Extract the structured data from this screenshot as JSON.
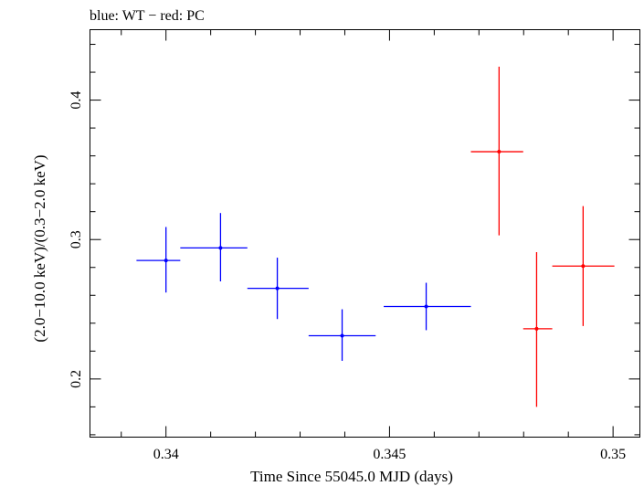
{
  "chart_data": {
    "type": "scatter",
    "title": "blue: WT − red: PC",
    "xlabel": "Time Since 55045.0 MJD (days)",
    "ylabel": "(2.0−10.0 keV)/(0.3−2.0 keV)",
    "xlim": [
      0.3383,
      0.3506
    ],
    "ylim": [
      0.1583,
      0.4505
    ],
    "x_ticks": [
      {
        "value": 0.34,
        "label": "0.34"
      },
      {
        "value": 0.345,
        "label": "0.345"
      },
      {
        "value": 0.35,
        "label": "0.35"
      }
    ],
    "y_ticks": [
      {
        "value": 0.2,
        "label": "0.2"
      },
      {
        "value": 0.3,
        "label": "0.3"
      },
      {
        "value": 0.4,
        "label": "0.4"
      }
    ],
    "grid": false,
    "series": [
      {
        "name": "WT",
        "color": "#0000ff",
        "points": [
          {
            "x": 0.34,
            "y": 0.285,
            "x_lo": 0.33934,
            "x_hi": 0.34032,
            "y_lo": 0.262,
            "y_hi": 0.309
          },
          {
            "x": 0.34122,
            "y": 0.294,
            "x_lo": 0.34032,
            "x_hi": 0.34182,
            "y_lo": 0.27,
            "y_hi": 0.319
          },
          {
            "x": 0.34249,
            "y": 0.265,
            "x_lo": 0.34182,
            "x_hi": 0.34319,
            "y_lo": 0.243,
            "y_hi": 0.287
          },
          {
            "x": 0.34394,
            "y": 0.231,
            "x_lo": 0.34319,
            "x_hi": 0.34469,
            "y_lo": 0.213,
            "y_hi": 0.25
          },
          {
            "x": 0.34582,
            "y": 0.252,
            "x_lo": 0.34487,
            "x_hi": 0.34682,
            "y_lo": 0.235,
            "y_hi": 0.269
          }
        ]
      },
      {
        "name": "PC",
        "color": "#ff0000",
        "points": [
          {
            "x": 0.34745,
            "y": 0.363,
            "x_lo": 0.34682,
            "x_hi": 0.34799,
            "y_lo": 0.303,
            "y_hi": 0.424
          },
          {
            "x": 0.34829,
            "y": 0.236,
            "x_lo": 0.34799,
            "x_hi": 0.34864,
            "y_lo": 0.18,
            "y_hi": 0.291
          },
          {
            "x": 0.34933,
            "y": 0.281,
            "x_lo": 0.34864,
            "x_hi": 0.35003,
            "y_lo": 0.238,
            "y_hi": 0.324
          }
        ]
      }
    ]
  }
}
